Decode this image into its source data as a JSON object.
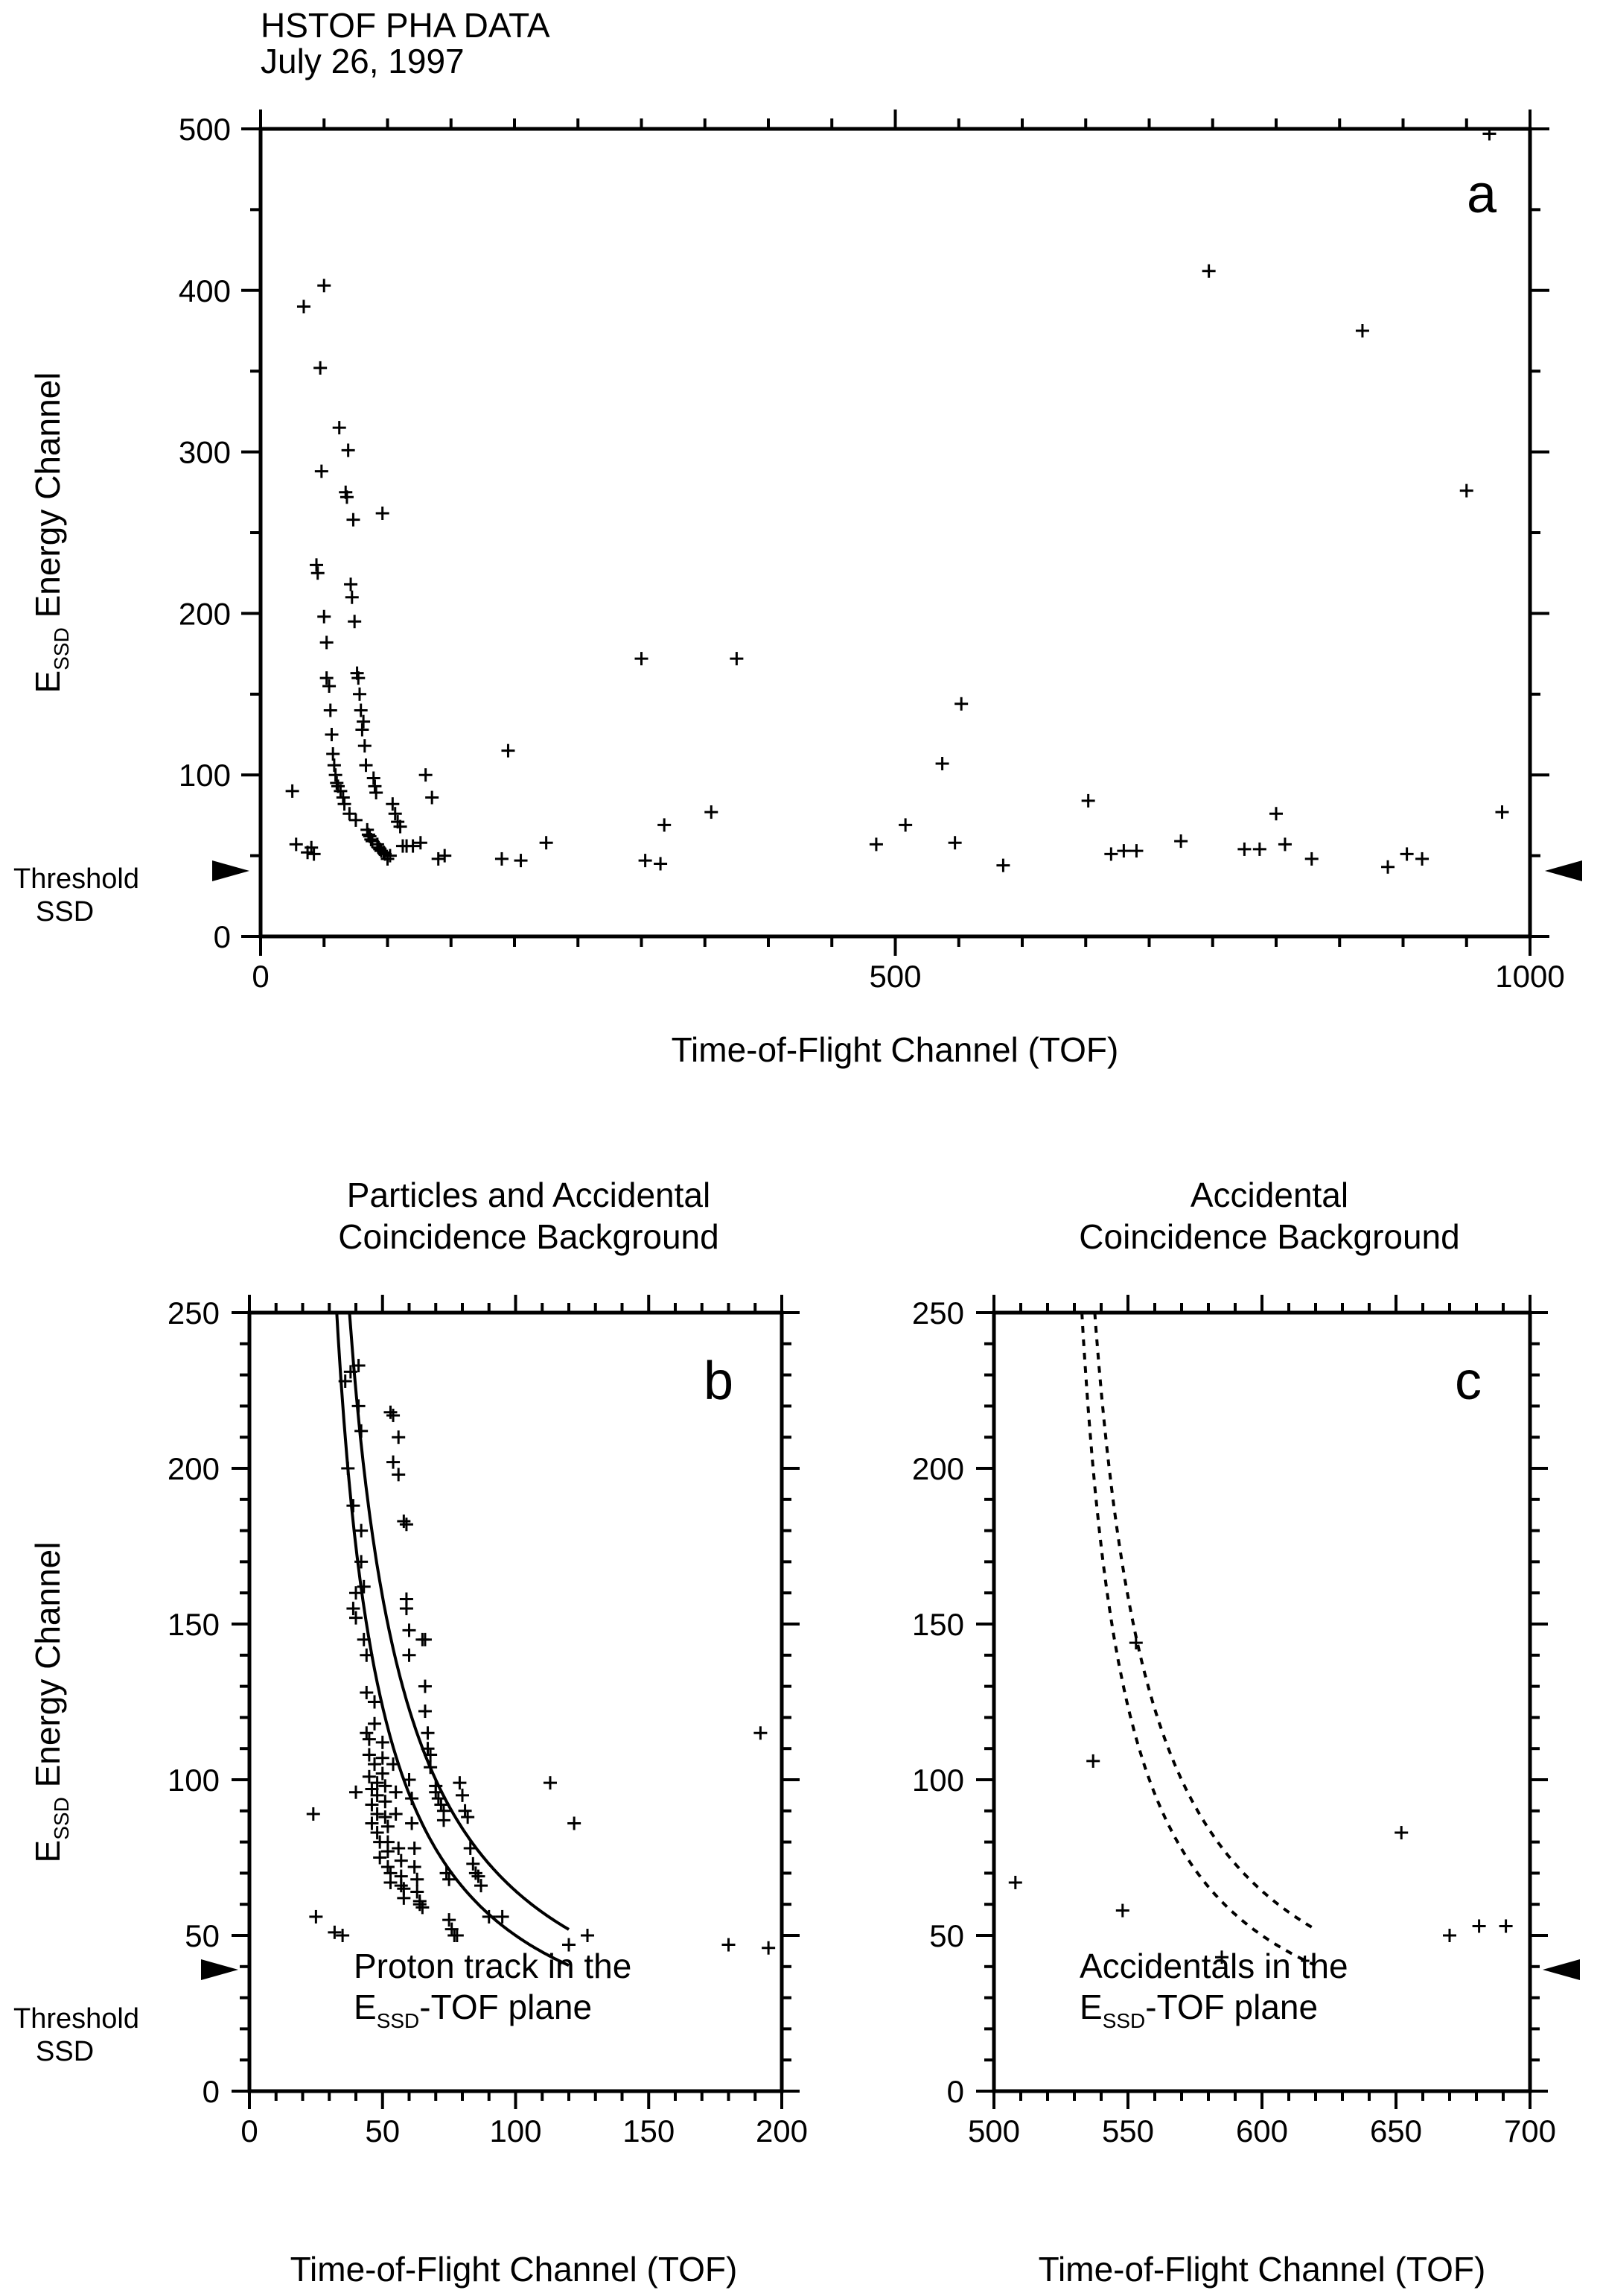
{
  "header": {
    "line1": "HSTOF PHA DATA",
    "line2": "July 26, 1997"
  },
  "threshold_label": {
    "line1": "Threshold",
    "line2": "SSD"
  },
  "ylabel_prefix": "E",
  "ylabel_subscript": "SSD",
  "ylabel_main": " Energy Channel",
  "xlabel": "Time-of-Flight Channel (TOF)",
  "chart_data": [
    {
      "id": "a",
      "type": "scatter",
      "panel_letter": "a",
      "title": "",
      "xlabel": "Time-of-Flight Channel (TOF)",
      "ylabel": "E_SSD Energy Channel",
      "xlim": [
        0,
        1000
      ],
      "ylim": [
        0,
        500
      ],
      "xticks": [
        0,
        500,
        1000
      ],
      "yticks": [
        0,
        100,
        200,
        300,
        400,
        500
      ],
      "x_minor_step": 50,
      "y_minor_step": 50,
      "grid": false,
      "threshold": 42,
      "points": [
        [
          25,
          90
        ],
        [
          28,
          57
        ],
        [
          34,
          390
        ],
        [
          37,
          52
        ],
        [
          40,
          55
        ],
        [
          42,
          51
        ],
        [
          44,
          230
        ],
        [
          45,
          225
        ],
        [
          47,
          352
        ],
        [
          48,
          288
        ],
        [
          50,
          403
        ],
        [
          50,
          198
        ],
        [
          52,
          182
        ],
        [
          52,
          160
        ],
        [
          54,
          155
        ],
        [
          55,
          140
        ],
        [
          56,
          125
        ],
        [
          57,
          113
        ],
        [
          58,
          106
        ],
        [
          59,
          100
        ],
        [
          60,
          95
        ],
        [
          61,
          93
        ],
        [
          62,
          315
        ],
        [
          63,
          90
        ],
        [
          65,
          86
        ],
        [
          66,
          82
        ],
        [
          67,
          275
        ],
        [
          68,
          272
        ],
        [
          69,
          301
        ],
        [
          70,
          76
        ],
        [
          71,
          218
        ],
        [
          72,
          210
        ],
        [
          73,
          258
        ],
        [
          74,
          195
        ],
        [
          75,
          72
        ],
        [
          76,
          163
        ],
        [
          77,
          160
        ],
        [
          78,
          150
        ],
        [
          79,
          140
        ],
        [
          80,
          128
        ],
        [
          81,
          133
        ],
        [
          82,
          118
        ],
        [
          83,
          106
        ],
        [
          84,
          66
        ],
        [
          85,
          63
        ],
        [
          86,
          62
        ],
        [
          87,
          60
        ],
        [
          88,
          59
        ],
        [
          89,
          98
        ],
        [
          90,
          93
        ],
        [
          91,
          89
        ],
        [
          92,
          57
        ],
        [
          93,
          55
        ],
        [
          94,
          54
        ],
        [
          95,
          53
        ],
        [
          96,
          262
        ],
        [
          97,
          52
        ],
        [
          98,
          51
        ],
        [
          100,
          48
        ],
        [
          102,
          50
        ],
        [
          104,
          82
        ],
        [
          106,
          76
        ],
        [
          108,
          71
        ],
        [
          110,
          68
        ],
        [
          112,
          56
        ],
        [
          115,
          56
        ],
        [
          120,
          56
        ],
        [
          126,
          58
        ],
        [
          130,
          100
        ],
        [
          135,
          86
        ],
        [
          140,
          48
        ],
        [
          145,
          50
        ],
        [
          190,
          48
        ],
        [
          195,
          115
        ],
        [
          205,
          47
        ],
        [
          225,
          58
        ],
        [
          300,
          172
        ],
        [
          303,
          47
        ],
        [
          315,
          45
        ],
        [
          318,
          69
        ],
        [
          355,
          77
        ],
        [
          375,
          172
        ],
        [
          485,
          57
        ],
        [
          508,
          69
        ],
        [
          537,
          107
        ],
        [
          547,
          58
        ],
        [
          552,
          144
        ],
        [
          585,
          44
        ],
        [
          652,
          84
        ],
        [
          670,
          51
        ],
        [
          680,
          53
        ],
        [
          690,
          53
        ],
        [
          725,
          59
        ],
        [
          747,
          412
        ],
        [
          775,
          54
        ],
        [
          787,
          54
        ],
        [
          800,
          76
        ],
        [
          807,
          57
        ],
        [
          828,
          48
        ],
        [
          868,
          375
        ],
        [
          888,
          43
        ],
        [
          903,
          51
        ],
        [
          915,
          48
        ],
        [
          950,
          276
        ],
        [
          968,
          497
        ],
        [
          978,
          77
        ]
      ]
    },
    {
      "id": "b",
      "type": "scatter",
      "panel_letter": "b",
      "title_lines": [
        "Particles and Accidental",
        "Coincidence Background"
      ],
      "xlabel": "Time-of-Flight Channel (TOF)",
      "ylabel": "E_SSD Energy Channel",
      "xlim": [
        0,
        200
      ],
      "ylim": [
        0,
        250
      ],
      "xticks": [
        0,
        50,
        100,
        150,
        200
      ],
      "yticks": [
        0,
        50,
        100,
        150,
        200,
        250
      ],
      "x_minor_step": 10,
      "y_minor_step": 10,
      "grid": false,
      "threshold": 39,
      "annotation": {
        "line1": "Proton track in the",
        "line2_prefix": "E",
        "line2_sub": "SSD",
        "line2_suffix": "-TOF plane"
      },
      "curves": [
        {
          "k": 4200,
          "x0": 16,
          "x_end": 120
        },
        {
          "k": 5400,
          "x0": 16,
          "x_end": 120
        }
      ],
      "points": [
        [
          24,
          89
        ],
        [
          25,
          56
        ],
        [
          32,
          51
        ],
        [
          35,
          50
        ],
        [
          36,
          228
        ],
        [
          37,
          200
        ],
        [
          38,
          231
        ],
        [
          39,
          188
        ],
        [
          39,
          155
        ],
        [
          40,
          160
        ],
        [
          40,
          152
        ],
        [
          40,
          96
        ],
        [
          41,
          233
        ],
        [
          41,
          220
        ],
        [
          42,
          212
        ],
        [
          42,
          180
        ],
        [
          42,
          170
        ],
        [
          43,
          162
        ],
        [
          43,
          145
        ],
        [
          44,
          140
        ],
        [
          44,
          128
        ],
        [
          44,
          115
        ],
        [
          45,
          113
        ],
        [
          45,
          108
        ],
        [
          45,
          101
        ],
        [
          46,
          97
        ],
        [
          46,
          92
        ],
        [
          46,
          86
        ],
        [
          47,
          125
        ],
        [
          47,
          118
        ],
        [
          47,
          105
        ],
        [
          48,
          99
        ],
        [
          48,
          95
        ],
        [
          48,
          89
        ],
        [
          48,
          83
        ],
        [
          49,
          80
        ],
        [
          49,
          75
        ],
        [
          50,
          112
        ],
        [
          50,
          107
        ],
        [
          50,
          102
        ],
        [
          51,
          98
        ],
        [
          51,
          93
        ],
        [
          51,
          88
        ],
        [
          52,
          85
        ],
        [
          52,
          80
        ],
        [
          52,
          77
        ],
        [
          52,
          72
        ],
        [
          53,
          70
        ],
        [
          53,
          67
        ],
        [
          53,
          218
        ],
        [
          54,
          217
        ],
        [
          54,
          202
        ],
        [
          54,
          105
        ],
        [
          55,
          96
        ],
        [
          55,
          89
        ],
        [
          56,
          210
        ],
        [
          56,
          198
        ],
        [
          56,
          78
        ],
        [
          57,
          74
        ],
        [
          57,
          69
        ],
        [
          57,
          66
        ],
        [
          58,
          65
        ],
        [
          58,
          62
        ],
        [
          58,
          183
        ],
        [
          59,
          182
        ],
        [
          59,
          158
        ],
        [
          59,
          155
        ],
        [
          60,
          148
        ],
        [
          60,
          140
        ],
        [
          60,
          100
        ],
        [
          61,
          94
        ],
        [
          61,
          86
        ],
        [
          62,
          78
        ],
        [
          62,
          72
        ],
        [
          63,
          68
        ],
        [
          63,
          64
        ],
        [
          64,
          61
        ],
        [
          64,
          60
        ],
        [
          65,
          59
        ],
        [
          65,
          145
        ],
        [
          66,
          145
        ],
        [
          66,
          130
        ],
        [
          66,
          122
        ],
        [
          67,
          115
        ],
        [
          67,
          110
        ],
        [
          68,
          108
        ],
        [
          68,
          104
        ],
        [
          70,
          98
        ],
        [
          70,
          96
        ],
        [
          71,
          94
        ],
        [
          72,
          92
        ],
        [
          73,
          90
        ],
        [
          73,
          87
        ],
        [
          74,
          70
        ],
        [
          75,
          68
        ],
        [
          75,
          55
        ],
        [
          76,
          52
        ],
        [
          77,
          50
        ],
        [
          78,
          50
        ],
        [
          79,
          99
        ],
        [
          80,
          95
        ],
        [
          81,
          90
        ],
        [
          82,
          88
        ],
        [
          83,
          78
        ],
        [
          84,
          73
        ],
        [
          85,
          70
        ],
        [
          86,
          69
        ],
        [
          87,
          66
        ],
        [
          90,
          56
        ],
        [
          95,
          56
        ],
        [
          113,
          99
        ],
        [
          120,
          47
        ],
        [
          122,
          86
        ],
        [
          127,
          50
        ],
        [
          180,
          47
        ],
        [
          192,
          115
        ],
        [
          195,
          46
        ]
      ]
    },
    {
      "id": "c",
      "type": "scatter",
      "panel_letter": "c",
      "title_lines": [
        "Accidental",
        "Coincidence Background"
      ],
      "xlabel": "Time-of-Flight Channel (TOF)",
      "ylabel": "",
      "xlim": [
        500,
        700
      ],
      "ylim": [
        0,
        250
      ],
      "xticks": [
        500,
        550,
        600,
        650,
        700
      ],
      "yticks": [
        0,
        50,
        100,
        150,
        200,
        250
      ],
      "x_minor_step": 10,
      "y_minor_step": 10,
      "grid": false,
      "threshold": 39,
      "annotation": {
        "line1": "Accidentals in the",
        "line2_prefix": "E",
        "line2_sub": "SSD",
        "line2_suffix": "-TOF plane"
      },
      "curves": [
        {
          "k": 4200,
          "x0": 516,
          "x_end": 620,
          "dashed": true
        },
        {
          "k": 5400,
          "x0": 516,
          "x_end": 620,
          "dashed": true
        }
      ],
      "points": [
        [
          508,
          67
        ],
        [
          537,
          106
        ],
        [
          548,
          58
        ],
        [
          553,
          144
        ],
        [
          585,
          43
        ],
        [
          652,
          83
        ],
        [
          670,
          50
        ],
        [
          681,
          53
        ],
        [
          691,
          53
        ]
      ]
    }
  ]
}
